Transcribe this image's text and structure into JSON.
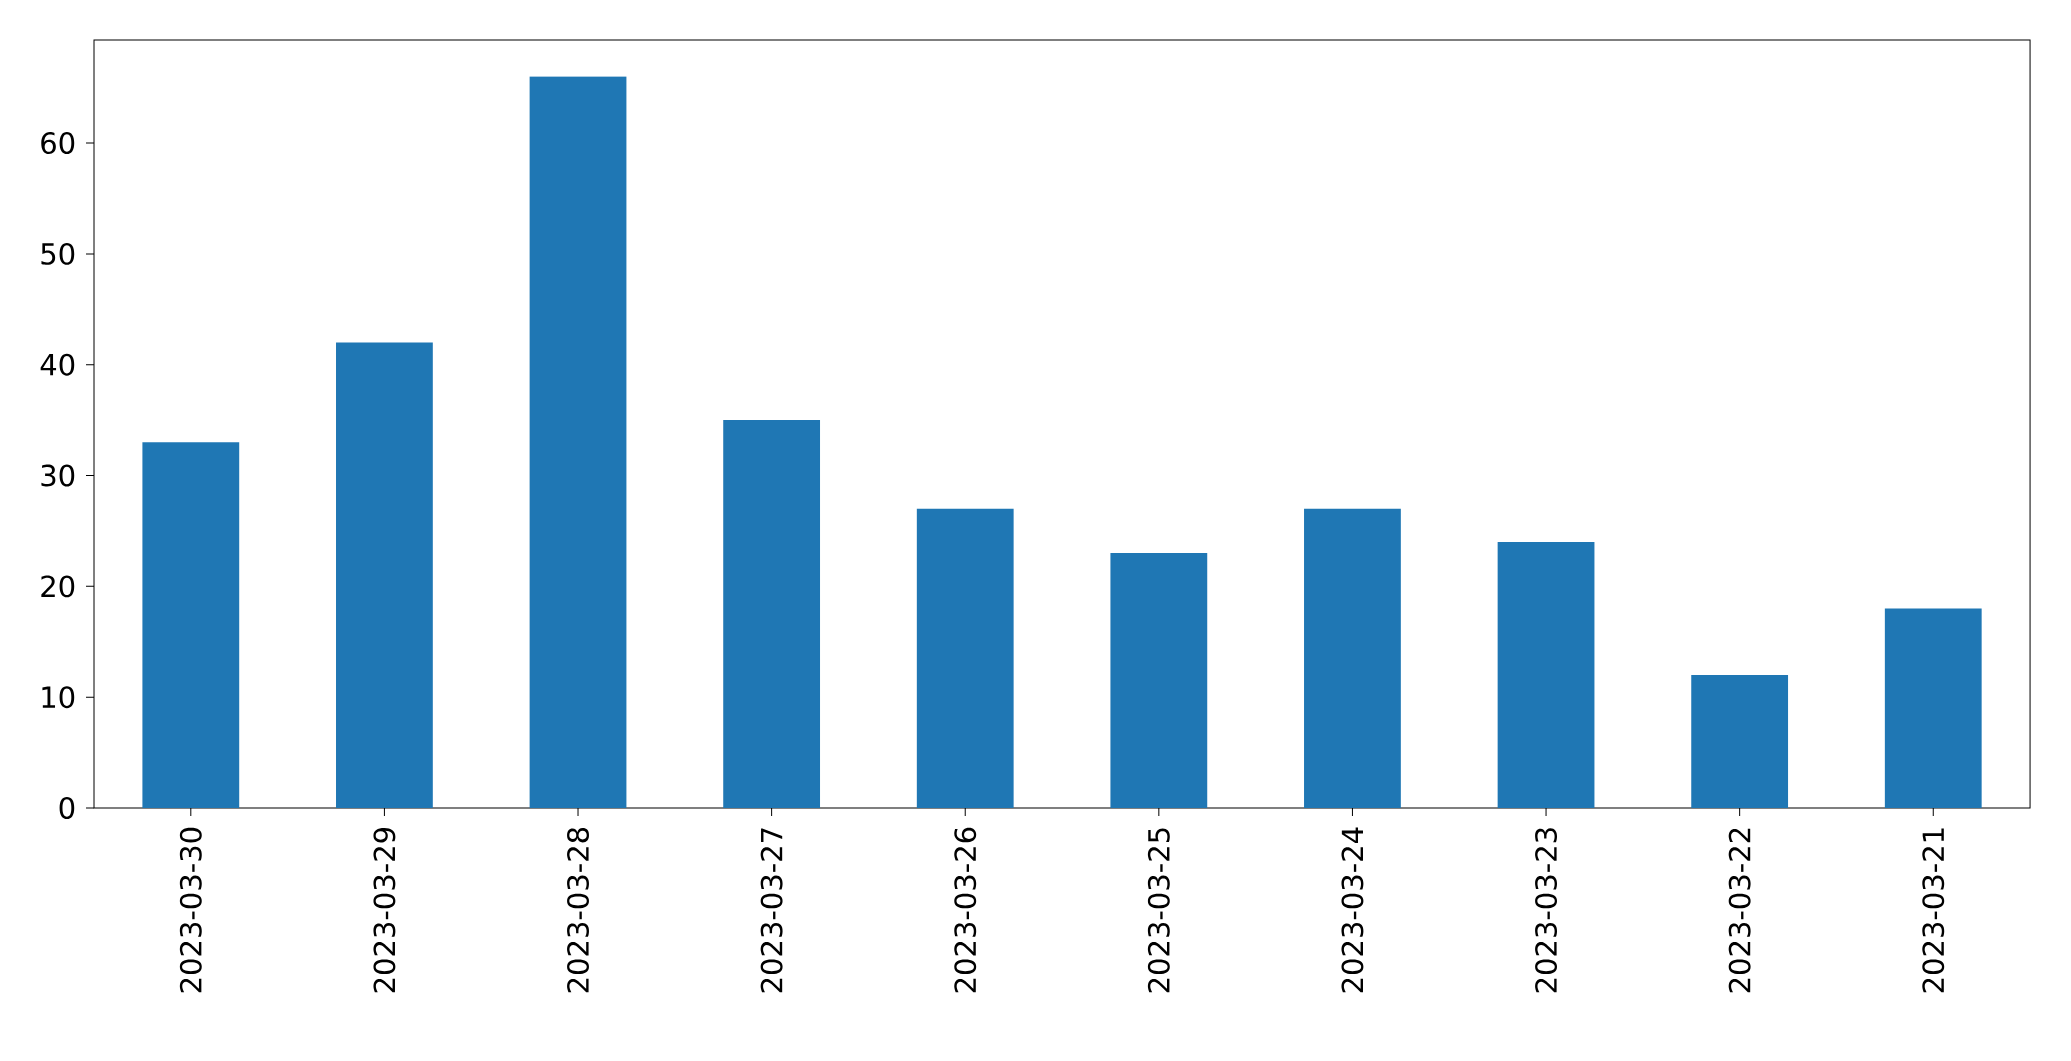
{
  "chart_data": {
    "type": "bar",
    "categories": [
      "2023-03-30",
      "2023-03-29",
      "2023-03-28",
      "2023-03-27",
      "2023-03-26",
      "2023-03-25",
      "2023-03-24",
      "2023-03-23",
      "2023-03-22",
      "2023-03-21"
    ],
    "values": [
      33,
      42,
      66,
      35,
      27,
      23,
      27,
      24,
      12,
      18
    ],
    "color": "#1f77b4",
    "ylim": [
      0,
      69.3
    ],
    "yticks": [
      0,
      10,
      20,
      30,
      40,
      50,
      60
    ]
  }
}
